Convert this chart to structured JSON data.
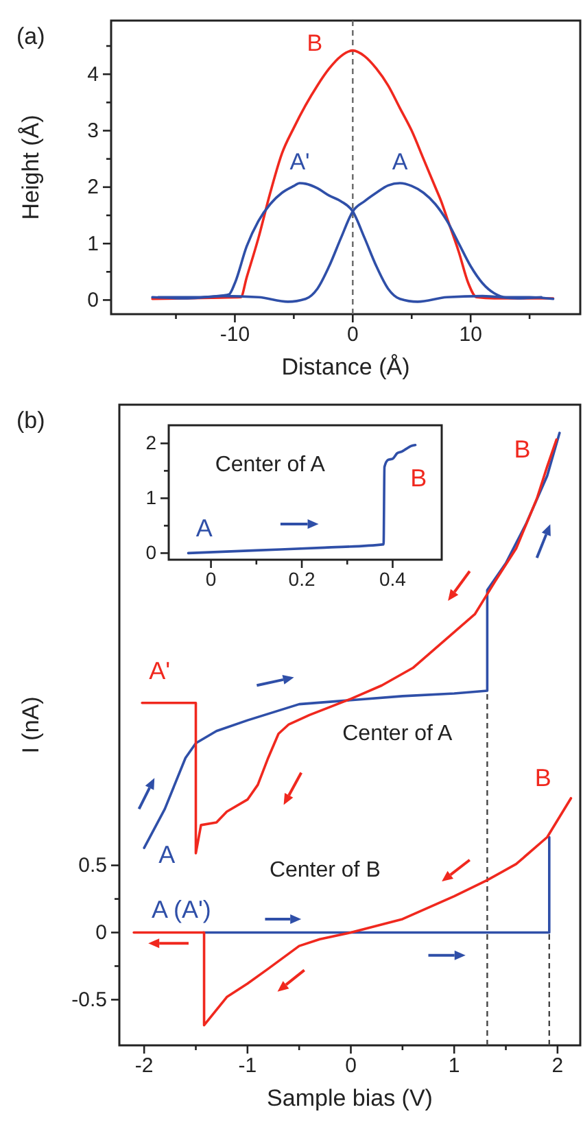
{
  "chart_data": [
    {
      "type": "line",
      "xlabel": "Distance (Å)",
      "ylabel": "Height (Å)",
      "annotations": [
        "(a)"
      ],
      "xlim": [
        -20.5,
        19.3
      ],
      "ylim": [
        -0.25,
        4.95
      ],
      "xticks": [
        {
          "value": -15,
          "label": null
        },
        -10,
        {
          "value": -5,
          "label": null
        },
        0,
        {
          "value": 5,
          "label": null
        },
        10,
        {
          "value": 15,
          "label": null
        }
      ],
      "yticks": [
        0,
        {
          "value": 0.5,
          "label": null
        },
        1,
        {
          "value": 1.5,
          "label": null
        },
        2,
        {
          "value": 2.5,
          "label": null
        },
        3,
        {
          "value": 3.5,
          "label": null
        },
        4,
        {
          "value": 4.5,
          "label": null
        }
      ],
      "ref_lines": [
        {
          "axis": "x",
          "value": 0,
          "color": "#666666",
          "line_style": "dashed"
        }
      ],
      "series": [
        {
          "name": "B",
          "color": "#f0281e",
          "x": [
            -17,
            -12,
            -9.5,
            -9,
            -8,
            -7,
            -6,
            -5,
            -4,
            -3,
            -2,
            -1,
            0,
            1,
            2,
            3,
            4,
            5,
            6,
            7,
            7.5,
            8,
            9,
            9.8,
            10.5,
            12,
            17
          ],
          "values": [
            0.02,
            0.04,
            0.05,
            0.4,
            1.1,
            1.9,
            2.6,
            3.05,
            3.45,
            3.8,
            4.1,
            4.32,
            4.42,
            4.32,
            4.1,
            3.8,
            3.4,
            3.0,
            2.5,
            2.0,
            1.75,
            1.45,
            0.85,
            0.3,
            0.05,
            0.03,
            0.03
          ]
        },
        {
          "name": "A'",
          "color": "#2f4fa8",
          "x": [
            -16.5,
            -15,
            -13,
            -11,
            -10.5,
            -10,
            -9,
            -8,
            -7,
            -6,
            -5,
            -4.5,
            -4,
            -3,
            -2,
            -1,
            0,
            1,
            2,
            3,
            4,
            5.5,
            8,
            11,
            14,
            16
          ],
          "values": [
            0.05,
            0.05,
            0.05,
            0.08,
            0.1,
            0.3,
            0.95,
            1.4,
            1.7,
            1.9,
            2.02,
            2.07,
            2.06,
            1.98,
            1.85,
            1.75,
            1.57,
            1.1,
            0.6,
            0.2,
            0.02,
            -0.03,
            0.05,
            0.07,
            0.03,
            0.05
          ]
        },
        {
          "name": "A",
          "color": "#2f4fa8",
          "x": [
            -17,
            -14,
            -11,
            -8,
            -5.5,
            -4,
            -3,
            -2,
            -1,
            0,
            1,
            2,
            3,
            4,
            5,
            6,
            7,
            8,
            9,
            10,
            11,
            12,
            13,
            15,
            17
          ],
          "values": [
            0.05,
            0.03,
            0.07,
            0.05,
            -0.03,
            0.02,
            0.2,
            0.6,
            1.1,
            1.57,
            1.75,
            1.9,
            2.03,
            2.07,
            2.02,
            1.9,
            1.7,
            1.4,
            1.0,
            0.6,
            0.3,
            0.12,
            0.05,
            0.05,
            0.02
          ]
        }
      ]
    },
    {
      "type": "line",
      "xlabel": "Sample bias (V)",
      "ylabel": "I (nA)",
      "annotations": [
        "(b)",
        "Center of A",
        "Center of B",
        "A",
        "A'",
        "B",
        "B",
        "A (A')"
      ],
      "xlim": [
        -2.24,
        2.22
      ],
      "ylim": [
        -0.84,
        3.93
      ],
      "xticks": [
        -2,
        {
          "value": -1.5,
          "label": null
        },
        -1,
        {
          "value": -0.5,
          "label": null
        },
        0,
        {
          "value": 0.5,
          "label": null
        },
        1,
        {
          "value": 1.5,
          "label": null
        },
        2
      ],
      "yticks": [
        -0.5,
        {
          "value": -0.25,
          "label": null
        },
        0.0,
        {
          "value": 0.25,
          "label": null
        },
        0.5
      ],
      "ref_lines": [
        {
          "axis": "x",
          "value": 1.32,
          "color": "#444444",
          "line_style": "dashed"
        },
        {
          "axis": "x",
          "value": 1.92,
          "color": "#444444",
          "line_style": "dashed"
        }
      ],
      "series": [
        {
          "color": "#2f4fa8",
          "x": [
            -2.0,
            -1.8,
            -1.6,
            -1.5,
            -1.3,
            -1.0,
            -0.5,
            0,
            0.5,
            1.0,
            1.32,
            1.32,
            1.5,
            1.7,
            1.9,
            2.02
          ],
          "values": [
            0.63,
            0.92,
            1.3,
            1.41,
            1.5,
            1.58,
            1.7,
            1.73,
            1.76,
            1.78,
            1.8,
            2.55,
            2.75,
            3.05,
            3.4,
            3.72
          ]
        },
        {
          "color": "#f0281e",
          "x": [
            -2.02,
            -1.5,
            -1.5,
            -1.45,
            -1.3,
            -1.2,
            -1.0,
            -0.9,
            -0.8,
            -0.7,
            -0.6,
            -0.4,
            -0.2,
            0,
            0.3,
            0.6,
            0.9,
            1.2,
            1.32,
            1.4,
            1.6,
            1.8,
            1.9,
            1.99
          ],
          "values": [
            1.71,
            1.71,
            0.59,
            0.8,
            0.82,
            0.9,
            0.99,
            1.1,
            1.3,
            1.48,
            1.55,
            1.62,
            1.68,
            1.74,
            1.84,
            1.97,
            2.17,
            2.37,
            2.52,
            2.62,
            2.86,
            3.23,
            3.47,
            3.67
          ]
        },
        {
          "color": "#2f4fa8",
          "x": [
            -1.43,
            1.92,
            1.92
          ],
          "values": [
            0,
            0,
            0.71
          ]
        },
        {
          "color": "#f0281e",
          "x": [
            -2.1,
            -1.42,
            -1.42,
            -1.2,
            -1.0,
            -0.8,
            -0.5,
            -0.3,
            0,
            0.5,
            1.0,
            1.32,
            1.6,
            1.9,
            2.13
          ],
          "values": [
            0,
            0,
            -0.69,
            -0.48,
            -0.38,
            -0.27,
            -0.1,
            -0.05,
            0,
            0.1,
            0.27,
            0.39,
            0.51,
            0.71,
            1.0
          ]
        }
      ]
    },
    {
      "type": "line",
      "annotations": [
        "Center of A",
        "A",
        "B"
      ],
      "xlim": [
        -0.093,
        0.508
      ],
      "ylim": [
        -0.12,
        2.33
      ],
      "xticks": [
        0,
        {
          "value": 0.1,
          "label": null
        },
        0.2,
        {
          "value": 0.3,
          "label": null
        },
        0.4
      ],
      "yticks": [
        0,
        {
          "value": 0.5,
          "label": null
        },
        1,
        {
          "value": 1.5,
          "label": null
        },
        2
      ],
      "series": [
        {
          "color": "#2f4fa8",
          "x": [
            -0.05,
            0.1,
            0.25,
            0.38,
            0.382,
            0.39,
            0.4,
            0.41,
            0.42,
            0.43,
            0.44,
            0.45
          ],
          "values": [
            0.0,
            0.05,
            0.1,
            0.16,
            1.57,
            1.7,
            1.72,
            1.82,
            1.85,
            1.9,
            1.95,
            1.97
          ]
        }
      ]
    }
  ]
}
